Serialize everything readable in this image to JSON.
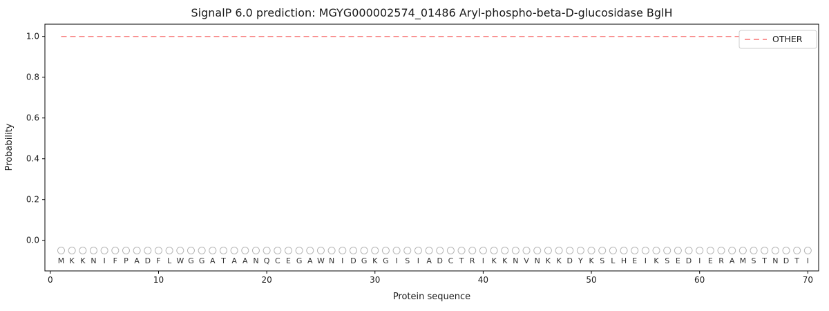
{
  "figure": {
    "title": "SignalP 6.0 prediction: MGYG000002574_01486 Aryl-phospho-beta-D-glucosidase BglH"
  },
  "chart_data": {
    "type": "line",
    "title": "SignalP 6.0 prediction: MGYG000002574_01486 Aryl-phospho-beta-D-glucosidase BglH",
    "xlabel": "Protein sequence",
    "ylabel": "Probability",
    "xlim": [
      -0.5,
      71
    ],
    "ylim": [
      -0.15,
      1.06
    ],
    "xticks": [
      0,
      10,
      20,
      30,
      40,
      50,
      60,
      70
    ],
    "yticks": [
      "0.0",
      "0.2",
      "0.4",
      "0.6",
      "0.8",
      "1.0"
    ],
    "ytick_values": [
      0.0,
      0.2,
      0.4,
      0.6,
      0.8,
      1.0
    ],
    "grid": false,
    "series": [
      {
        "name": "OTHER",
        "color": "#f87272",
        "linestyle": "dashed",
        "x_start": 1,
        "x_end": 70,
        "y_constant": 1.0,
        "n_points": 70
      }
    ],
    "sequence": "MKKNIFPADFLWGGATAANQCEGAWNIDGKGISIADCTRIKKNVNKKDYKSLHEIKSEDIERAMSTNDTI",
    "sequence_marker": {
      "symbol": "circle-open",
      "y": -0.05,
      "color": "#b5b5b5",
      "radius": 5
    },
    "sequence_letter_y": -0.1,
    "legend": {
      "position": "upper right",
      "entries": [
        {
          "label": "OTHER",
          "color": "#f87272",
          "linestyle": "dashed"
        }
      ]
    },
    "axis_color": "#000000"
  }
}
